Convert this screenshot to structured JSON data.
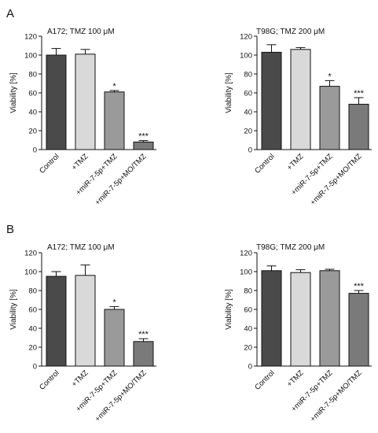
{
  "panels": [
    {
      "letter": "A"
    },
    {
      "letter": "B"
    }
  ],
  "colors": {
    "Control": "#4a4a4a",
    "+TMZ": "#d9d9d9",
    "+miR-7-5p+TMZ": "#9a9a9a",
    "+miR-7-5p+MO/TMZ": "#7a7a7a"
  },
  "chart_data": [
    {
      "type": "bar",
      "title": "A172; TMZ 100 μM",
      "ylabel": "Viability [%]",
      "ylim": [
        0,
        120
      ],
      "yticks": [
        0,
        20,
        40,
        60,
        80,
        100,
        120
      ],
      "categories": [
        "Control",
        "+TMZ",
        "+miR-7-5p+TMZ",
        "+miR-7-5p+MO/TMZ"
      ],
      "values": [
        100,
        101,
        61,
        8
      ],
      "errors": [
        7,
        5,
        1.5,
        1.5
      ],
      "significance": [
        "",
        "",
        "*",
        "***"
      ]
    },
    {
      "type": "bar",
      "title": "T98G; TMZ 200 μM",
      "ylabel": "Viability [%]",
      "ylim": [
        0,
        120
      ],
      "yticks": [
        0,
        20,
        40,
        60,
        80,
        100,
        120
      ],
      "categories": [
        "Control",
        "+TMZ",
        "+miR-7-5p+TMZ",
        "+miR-7-5p+MO/TMZ"
      ],
      "values": [
        103,
        106,
        67,
        48
      ],
      "errors": [
        8,
        2,
        6,
        7
      ],
      "significance": [
        "",
        "",
        "*",
        "***"
      ]
    },
    {
      "type": "bar",
      "title": "A172; TMZ 100 μM",
      "ylabel": "Viability [%]",
      "ylim": [
        0,
        120
      ],
      "yticks": [
        0,
        20,
        40,
        60,
        80,
        100,
        120
      ],
      "categories": [
        "Control",
        "+TMZ",
        "+miR-7-5p+TMZ",
        "+miR-7-5p+MO/TMZ"
      ],
      "values": [
        95,
        96,
        60,
        26
      ],
      "errors": [
        5,
        11,
        3,
        3
      ],
      "significance": [
        "",
        "",
        "*",
        "***"
      ]
    },
    {
      "type": "bar",
      "title": "T98G; TMZ 200 μM",
      "ylabel": "Viability [%]",
      "ylim": [
        0,
        120
      ],
      "yticks": [
        0,
        20,
        40,
        60,
        80,
        100,
        120
      ],
      "categories": [
        "Control",
        "+TMZ",
        "+miR-7-5p+TMZ",
        "+miR-7-5p+MO/TMZ"
      ],
      "values": [
        101,
        99,
        101,
        77
      ],
      "errors": [
        5,
        3,
        1.5,
        3
      ],
      "significance": [
        "",
        "",
        "",
        "***"
      ]
    }
  ]
}
